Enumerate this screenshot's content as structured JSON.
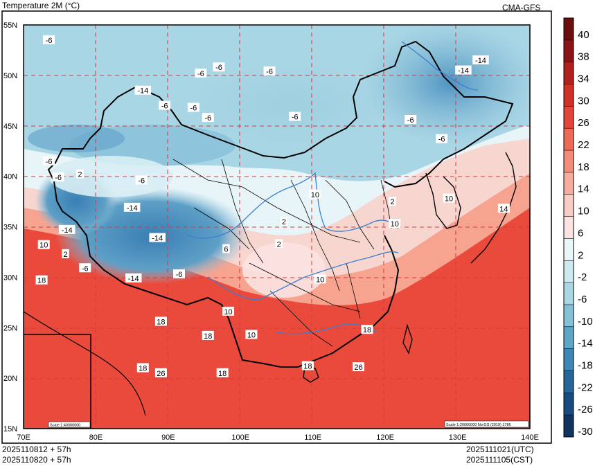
{
  "header": {
    "title": "Temperature  2M (°C)",
    "model": "CMA-GFS"
  },
  "footer": {
    "init_utc": "2025110812 + 57h",
    "init_cst": "2025110820 + 57h",
    "valid_utc": "2025111021(UTC)",
    "valid_cst": "2025111105(CST)"
  },
  "scale": {
    "inset": "Scale 1:40000000",
    "main": "Scale 1:20000000 No:GS (2019) 1786"
  },
  "axes": {
    "lon_labels": [
      "70E",
      "80E",
      "90E",
      "100E",
      "110E",
      "120E",
      "130E",
      "140E"
    ],
    "lat_labels": [
      "55N",
      "50N",
      "45N",
      "40N",
      "35N",
      "30N",
      "25N",
      "20N",
      "15N"
    ],
    "lon_range": [
      70,
      140
    ],
    "lat_range": [
      15,
      55
    ]
  },
  "colorbar": {
    "labels": [
      "40",
      "38",
      "34",
      "30",
      "26",
      "22",
      "18",
      "14",
      "10",
      "6",
      "2",
      "-2",
      "-6",
      "-10",
      "-14",
      "-18",
      "-22",
      "-26",
      "-30"
    ],
    "colors": [
      "#6b0d0d",
      "#8b1515",
      "#b0201d",
      "#cf3127",
      "#e2463a",
      "#ec6a56",
      "#f28c78",
      "#f6ad9e",
      "#f9cdc6",
      "#fbe3e1",
      "#eaf6f8",
      "#cdeaf0",
      "#a9d8e4",
      "#84c0d6",
      "#5ea6c7",
      "#3e86b5",
      "#24659a",
      "#184c80",
      "#0f3460"
    ]
  },
  "contour_labels": [
    {
      "text": "-6",
      "lon": 73.5,
      "lat": 53.5
    },
    {
      "text": "-6",
      "lon": 94.5,
      "lat": 50.2
    },
    {
      "text": "-6",
      "lon": 97,
      "lat": 50.8
    },
    {
      "text": "-6",
      "lon": 104,
      "lat": 50.4
    },
    {
      "text": "-14",
      "lon": 86.5,
      "lat": 48.5
    },
    {
      "text": "-6",
      "lon": 89.5,
      "lat": 47
    },
    {
      "text": "-6",
      "lon": 93.5,
      "lat": 46.8
    },
    {
      "text": "-6",
      "lon": 95.5,
      "lat": 45.8
    },
    {
      "text": "-6",
      "lon": 107.5,
      "lat": 45.9
    },
    {
      "text": "-14",
      "lon": 133.2,
      "lat": 51.5
    },
    {
      "text": "-14",
      "lon": 130.8,
      "lat": 50.5
    },
    {
      "text": "-6",
      "lon": 123.5,
      "lat": 45.6
    },
    {
      "text": "-6",
      "lon": 127.8,
      "lat": 43.7
    },
    {
      "text": "-6",
      "lon": 73.5,
      "lat": 41.5
    },
    {
      "text": "-6",
      "lon": 74.8,
      "lat": 39.9
    },
    {
      "text": "2",
      "lon": 77.8,
      "lat": 40.2
    },
    {
      "text": "-6",
      "lon": 86.3,
      "lat": 39.6
    },
    {
      "text": "-14",
      "lon": 85,
      "lat": 36.9
    },
    {
      "text": "-14",
      "lon": 76,
      "lat": 34.7
    },
    {
      "text": "10",
      "lon": 72.8,
      "lat": 33.2
    },
    {
      "text": "2",
      "lon": 75.8,
      "lat": 32.3
    },
    {
      "text": "-6",
      "lon": 78.5,
      "lat": 30.9
    },
    {
      "text": "-14",
      "lon": 85.2,
      "lat": 29.9
    },
    {
      "text": "-14",
      "lon": 88.5,
      "lat": 33.9
    },
    {
      "text": "-6",
      "lon": 91.5,
      "lat": 30.3
    },
    {
      "text": "18",
      "lon": 72.5,
      "lat": 29.7
    },
    {
      "text": "6",
      "lon": 98,
      "lat": 32.8
    },
    {
      "text": "2",
      "lon": 106,
      "lat": 35.5
    },
    {
      "text": "2",
      "lon": 105.3,
      "lat": 33.3
    },
    {
      "text": "10",
      "lon": 110.3,
      "lat": 38.2
    },
    {
      "text": "2",
      "lon": 121,
      "lat": 37.5
    },
    {
      "text": "10",
      "lon": 128.8,
      "lat": 37.8
    },
    {
      "text": "10",
      "lon": 121.3,
      "lat": 35.3
    },
    {
      "text": "14",
      "lon": 136.4,
      "lat": 36.8
    },
    {
      "text": "10",
      "lon": 98.3,
      "lat": 26.6
    },
    {
      "text": "10",
      "lon": 101.5,
      "lat": 24.3
    },
    {
      "text": "10",
      "lon": 111,
      "lat": 29.8
    },
    {
      "text": "18",
      "lon": 89,
      "lat": 25.6
    },
    {
      "text": "18",
      "lon": 95.5,
      "lat": 24.2
    },
    {
      "text": "18",
      "lon": 86.5,
      "lat": 21
    },
    {
      "text": "18",
      "lon": 97.5,
      "lat": 20.5
    },
    {
      "text": "26",
      "lon": 89,
      "lat": 20.5
    },
    {
      "text": "18",
      "lon": 117.5,
      "lat": 24.8
    },
    {
      "text": "18",
      "lon": 109.3,
      "lat": 21.2
    },
    {
      "text": "26",
      "lon": 116.3,
      "lat": 21.1
    }
  ]
}
